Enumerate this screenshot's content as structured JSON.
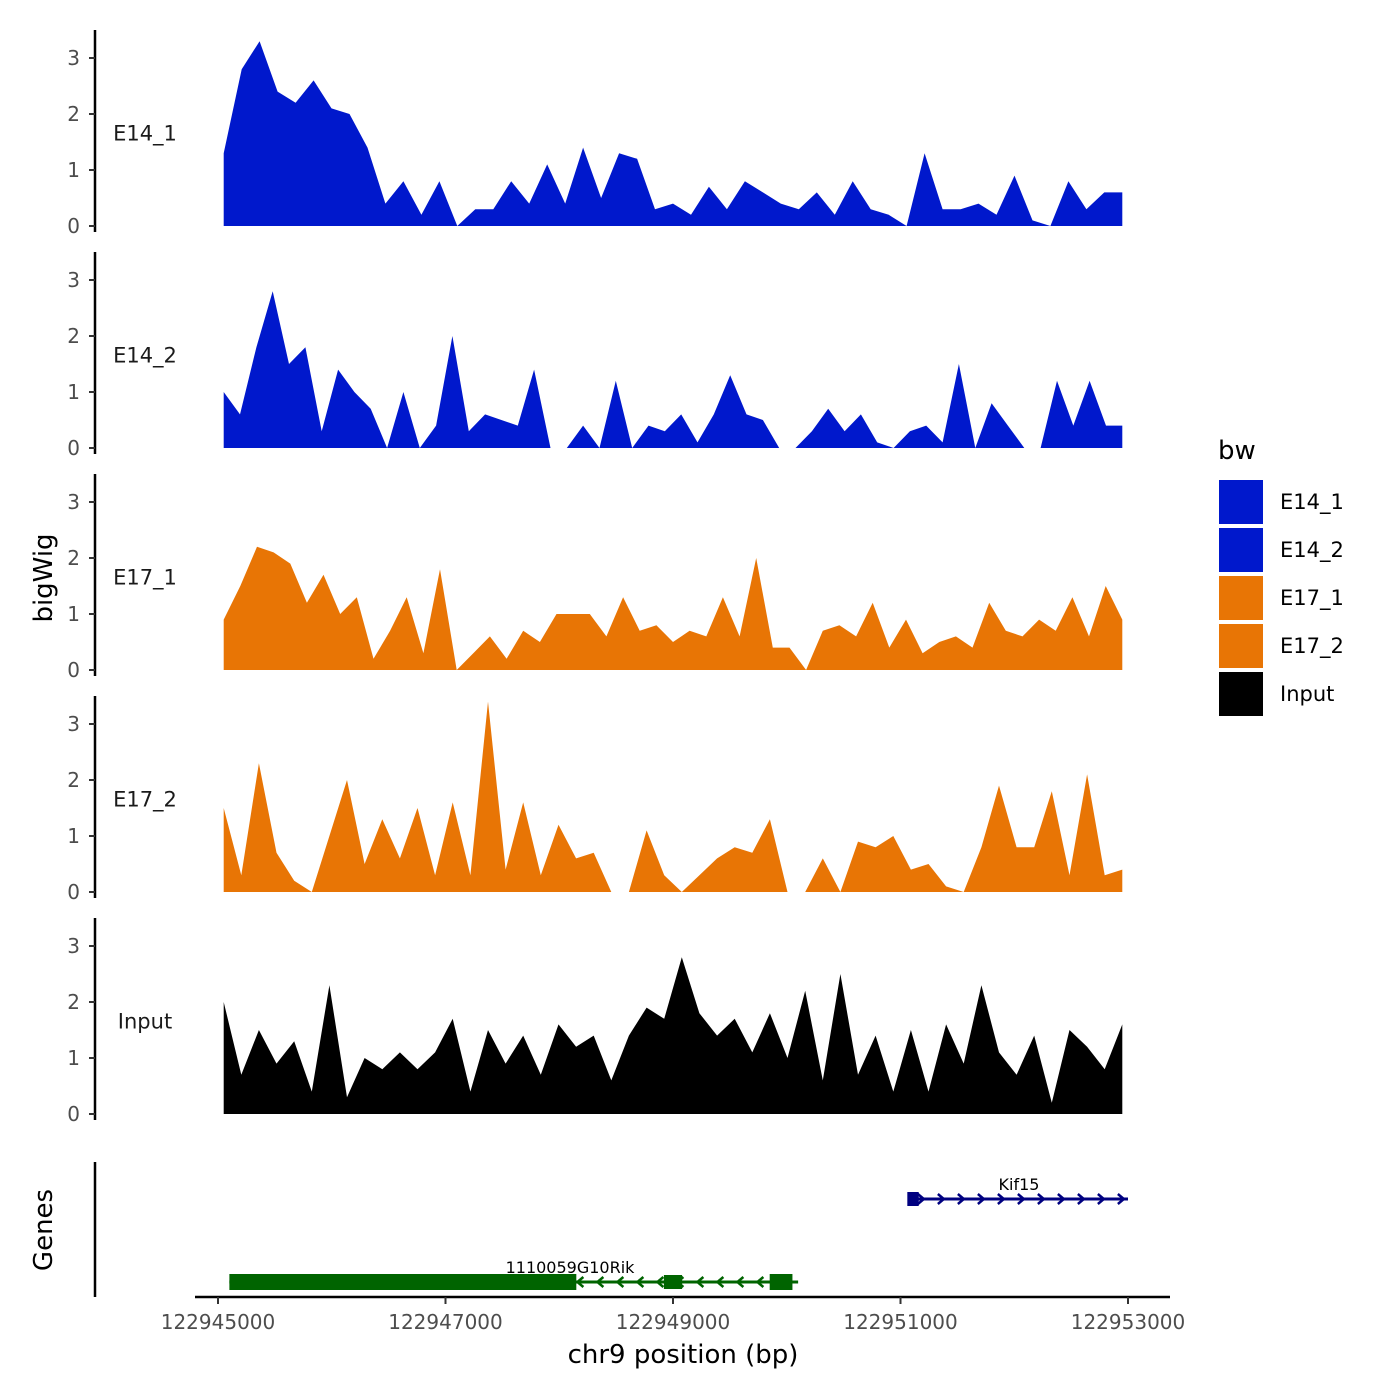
{
  "chart_data": {
    "type": "area",
    "ylabel": "bigWig",
    "xlabel": "chr9 position (bp)",
    "genes_label": "Genes",
    "xlim": [
      122945000,
      122953000
    ],
    "ylim": [
      0,
      3.5
    ],
    "x_ticks": [
      122945000,
      122947000,
      122949000,
      122951000,
      122953000
    ],
    "y_ticks": [
      0,
      1,
      2,
      3
    ],
    "legend": {
      "title": "bw",
      "position": "right",
      "entries": [
        {
          "label": "E14_1",
          "color": "#0018CC"
        },
        {
          "label": "E14_2",
          "color": "#0018CC"
        },
        {
          "label": "E17_1",
          "color": "#E87505"
        },
        {
          "label": "E17_2",
          "color": "#E87505"
        },
        {
          "label": "Input",
          "color": "#000000"
        }
      ]
    },
    "track_x_range": [
      122945050,
      122952950
    ],
    "tracks": [
      {
        "name": "E14_1",
        "color": "#0018CC",
        "values": [
          1.3,
          2.8,
          3.3,
          2.4,
          2.2,
          2.6,
          2.1,
          2.0,
          1.4,
          0.4,
          0.8,
          0.2,
          0.8,
          0.0,
          0.3,
          0.3,
          0.8,
          0.4,
          1.1,
          0.4,
          1.4,
          0.5,
          1.3,
          1.2,
          0.3,
          0.4,
          0.2,
          0.7,
          0.3,
          0.8,
          0.6,
          0.4,
          0.3,
          0.6,
          0.2,
          0.8,
          0.3,
          0.2,
          0.0,
          1.3,
          0.3,
          0.3,
          0.4,
          0.2,
          0.9,
          0.1,
          0.0,
          0.8,
          0.3,
          0.6,
          0.6
        ]
      },
      {
        "name": "E14_2",
        "color": "#0018CC",
        "values": [
          1.0,
          0.6,
          1.8,
          2.8,
          1.5,
          1.8,
          0.3,
          1.4,
          1.0,
          0.7,
          0.0,
          1.0,
          0.0,
          0.4,
          2.0,
          0.3,
          0.6,
          0.5,
          0.4,
          1.4,
          0.0,
          0.0,
          0.4,
          0.0,
          1.2,
          0.0,
          0.4,
          0.3,
          0.6,
          0.1,
          0.6,
          1.3,
          0.6,
          0.5,
          0.0,
          0.0,
          0.3,
          0.7,
          0.3,
          0.6,
          0.1,
          0.0,
          0.3,
          0.4,
          0.1,
          1.5,
          0.0,
          0.8,
          0.4,
          0.0,
          0.0,
          1.2,
          0.4,
          1.2,
          0.4,
          0.4
        ]
      },
      {
        "name": "E17_1",
        "color": "#E87505",
        "values": [
          0.9,
          1.5,
          2.2,
          2.1,
          1.9,
          1.2,
          1.7,
          1.0,
          1.3,
          0.2,
          0.7,
          1.3,
          0.3,
          1.8,
          0.0,
          0.3,
          0.6,
          0.2,
          0.7,
          0.5,
          1.0,
          1.0,
          1.0,
          0.6,
          1.3,
          0.7,
          0.8,
          0.5,
          0.7,
          0.6,
          1.3,
          0.6,
          2.0,
          0.4,
          0.4,
          0.0,
          0.7,
          0.8,
          0.6,
          1.2,
          0.4,
          0.9,
          0.3,
          0.5,
          0.6,
          0.4,
          1.2,
          0.7,
          0.6,
          0.9,
          0.7,
          1.3,
          0.6,
          1.5,
          0.9
        ]
      },
      {
        "name": "E17_2",
        "color": "#E87505",
        "values": [
          1.5,
          0.3,
          2.3,
          0.7,
          0.2,
          0.0,
          1.0,
          2.0,
          0.5,
          1.3,
          0.6,
          1.5,
          0.3,
          1.6,
          0.3,
          3.4,
          0.4,
          1.6,
          0.3,
          1.2,
          0.6,
          0.7,
          0.0,
          0.0,
          1.1,
          0.3,
          0.0,
          0.3,
          0.6,
          0.8,
          0.7,
          1.3,
          0.0,
          0.0,
          0.6,
          0.0,
          0.9,
          0.8,
          1.0,
          0.4,
          0.5,
          0.1,
          0.0,
          0.8,
          1.9,
          0.8,
          0.8,
          1.8,
          0.3,
          2.1,
          0.3,
          0.4
        ]
      },
      {
        "name": "Input",
        "color": "#000000",
        "values": [
          2.0,
          0.7,
          1.5,
          0.9,
          1.3,
          0.4,
          2.3,
          0.3,
          1.0,
          0.8,
          1.1,
          0.8,
          1.1,
          1.7,
          0.4,
          1.5,
          0.9,
          1.4,
          0.7,
          1.6,
          1.2,
          1.4,
          0.6,
          1.4,
          1.9,
          1.7,
          2.8,
          1.8,
          1.4,
          1.7,
          1.1,
          1.8,
          1.0,
          2.2,
          0.6,
          2.5,
          0.7,
          1.4,
          0.4,
          1.5,
          0.4,
          1.6,
          0.9,
          2.3,
          1.1,
          0.7,
          1.4,
          0.2,
          1.5,
          1.2,
          0.8,
          1.6
        ]
      }
    ],
    "genes": [
      {
        "name": "Kif15",
        "start": 122951100,
        "end": 122953000,
        "strand": "+",
        "color": "#000080"
      },
      {
        "name": "1110059G10Rik",
        "start": 122945100,
        "end": 122950100,
        "strand": "-",
        "color": "#006400"
      }
    ]
  }
}
